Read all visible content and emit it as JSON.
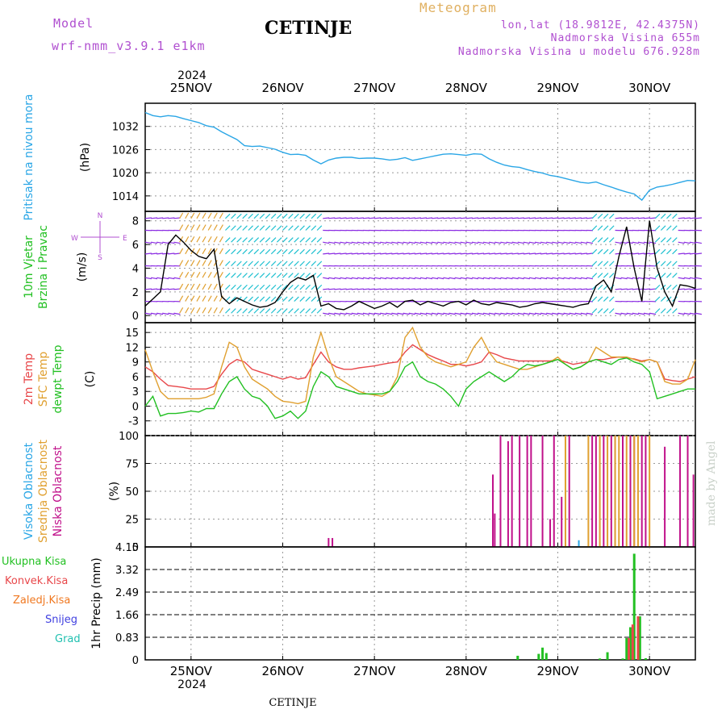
{
  "header": {
    "model_label": "Model",
    "model_name": "wrf-nmm_v3.9.1  e1km",
    "station": "CETINJE",
    "meteogram_label": "Meteogram",
    "lonlat": "lon,lat (18.9812E, 42.4375N)",
    "elevation": "Nadmorska Visina 655m",
    "model_elevation": "Nadmorska Visina u modelu 676.928m",
    "year_top": "2024",
    "year_bottom": "2024",
    "footer_station": "CETINJE",
    "credit": "made by Angel"
  },
  "colors": {
    "pressure": "#2aa6e6",
    "temp2m": "#e8474a",
    "sfc": "#e0a030",
    "dewpt": "#22c022",
    "high_cloud": "#2aa6e6",
    "mid_cloud": "#e0a030",
    "low_cloud": "#c0108a",
    "total_precip": "#22c022",
    "conv_precip": "#e8474a",
    "frozen": "#f07820",
    "snow": "#4040e0",
    "hail": "#20c0b0",
    "wind_purple": "#8a2be2"
  },
  "chart_data": [
    {
      "id": "pressure",
      "type": "line",
      "ylabel_lines": [
        "Pritisak na nivou mora",
        "(hPa)"
      ],
      "ylim": [
        1010,
        1038
      ],
      "yticks": [
        1014,
        1020,
        1026,
        1032
      ],
      "xlim": [
        0,
        144
      ],
      "x_tick_labels": [
        "25NOV",
        "26NOV",
        "27NOV",
        "28NOV",
        "29NOV",
        "30NOV"
      ],
      "x_tick_hours": [
        12,
        36,
        60,
        84,
        108,
        132
      ],
      "series": [
        {
          "key": "slp",
          "color_key": "pressure",
          "x": [
            0,
            2,
            4,
            6,
            8,
            10,
            12,
            14,
            16,
            18,
            20,
            22,
            24,
            26,
            28,
            30,
            32,
            34,
            36,
            38,
            40,
            42,
            44,
            46,
            48,
            50,
            52,
            54,
            56,
            58,
            60,
            62,
            64,
            66,
            68,
            70,
            72,
            74,
            76,
            78,
            80,
            82,
            84,
            86,
            88,
            90,
            92,
            94,
            96,
            98,
            100,
            102,
            104,
            106,
            108,
            110,
            112,
            114,
            116,
            118,
            120,
            122,
            124,
            126,
            128,
            130,
            132,
            134,
            136,
            138,
            140,
            142,
            144
          ],
          "y": [
            1035.6,
            1034.8,
            1034.5,
            1034.8,
            1034.6,
            1034.0,
            1033.5,
            1033.0,
            1032.2,
            1031.8,
            1030.6,
            1029.6,
            1028.6,
            1027.0,
            1026.8,
            1026.9,
            1026.5,
            1026.1,
            1025.3,
            1024.7,
            1024.8,
            1024.5,
            1023.3,
            1022.3,
            1023.3,
            1023.8,
            1024.0,
            1024.0,
            1023.7,
            1023.8,
            1023.8,
            1023.6,
            1023.3,
            1023.5,
            1023.9,
            1023.2,
            1023.6,
            1024.0,
            1024.4,
            1024.8,
            1024.9,
            1024.7,
            1024.5,
            1024.9,
            1024.8,
            1023.6,
            1022.7,
            1022.0,
            1021.6,
            1021.4,
            1020.8,
            1020.3,
            1019.9,
            1019.3,
            1019.0,
            1018.5,
            1018.0,
            1017.5,
            1017.3,
            1017.6,
            1016.9,
            1016.3,
            1015.6,
            1015.0,
            1014.5,
            1012.9,
            1015.5,
            1016.3,
            1016.6,
            1017.0,
            1017.5,
            1018.0,
            1017.9
          ]
        }
      ]
    },
    {
      "id": "wind",
      "type": "line",
      "ylabel_lines": [
        "10m Vjetar",
        "Brzina i Pravac",
        "(m/s)"
      ],
      "compass": {
        "n": "N",
        "s": "S",
        "e": "E",
        "w": "W"
      },
      "ylim": [
        -0.6,
        8.8
      ],
      "yticks": [
        0,
        2,
        4,
        6,
        8
      ],
      "xlim": [
        0,
        144
      ],
      "x_tick_hours": [
        12,
        36,
        60,
        84,
        108,
        132
      ],
      "series": [
        {
          "key": "speed",
          "color_key": "wind_dark",
          "x": [
            0,
            2,
            4,
            6,
            8,
            10,
            12,
            14,
            16,
            18,
            20,
            22,
            24,
            26,
            28,
            30,
            32,
            34,
            36,
            38,
            40,
            42,
            44,
            46,
            48,
            50,
            52,
            54,
            56,
            58,
            60,
            62,
            64,
            66,
            68,
            70,
            72,
            74,
            76,
            78,
            80,
            82,
            84,
            86,
            88,
            90,
            92,
            94,
            96,
            98,
            100,
            102,
            104,
            106,
            108,
            110,
            112,
            114,
            116,
            118,
            120,
            122,
            124,
            126,
            128,
            130,
            132,
            134,
            136,
            138,
            140,
            142,
            144
          ],
          "y": [
            0.8,
            1.4,
            2.0,
            6.0,
            6.8,
            6.2,
            5.5,
            5.0,
            4.8,
            5.6,
            1.6,
            1.0,
            1.5,
            1.2,
            0.9,
            0.7,
            0.8,
            1.1,
            2.0,
            2.8,
            3.2,
            3.0,
            3.4,
            0.8,
            1.0,
            0.6,
            0.5,
            0.8,
            1.2,
            0.9,
            0.6,
            0.8,
            1.1,
            0.7,
            1.2,
            1.3,
            0.9,
            1.2,
            1.0,
            0.8,
            1.1,
            1.2,
            0.9,
            1.3,
            1.0,
            0.9,
            1.1,
            1.0,
            0.9,
            0.7,
            0.8,
            1.0,
            1.1,
            1.0,
            0.9,
            0.8,
            0.7,
            0.9,
            1.0,
            2.5,
            3.0,
            2.0,
            5.0,
            7.5,
            4.0,
            1.2,
            8.0,
            4.0,
            2.0,
            0.8,
            2.6,
            2.5,
            2.3
          ]
        }
      ]
    },
    {
      "id": "temperature",
      "type": "line",
      "ylabel_lines": [
        "2m Temp",
        "SFC Temp",
        "dewpt Temp",
        "(C)"
      ],
      "ylim": [
        -6,
        17
      ],
      "yticks": [
        -3,
        0,
        3,
        6,
        9,
        12,
        15
      ],
      "xlim": [
        0,
        144
      ],
      "x_tick_hours": [
        12,
        36,
        60,
        84,
        108,
        132
      ],
      "series": [
        {
          "key": "t2m",
          "color_key": "temp2m",
          "x": [
            0,
            2,
            4,
            6,
            8,
            10,
            12,
            14,
            16,
            18,
            20,
            22,
            24,
            26,
            28,
            30,
            32,
            34,
            36,
            38,
            40,
            42,
            44,
            46,
            48,
            50,
            52,
            54,
            56,
            58,
            60,
            62,
            64,
            66,
            68,
            70,
            72,
            74,
            76,
            78,
            80,
            82,
            84,
            86,
            88,
            90,
            92,
            94,
            96,
            98,
            100,
            102,
            104,
            106,
            108,
            110,
            112,
            114,
            116,
            118,
            120,
            122,
            124,
            126,
            128,
            130,
            132,
            134,
            136,
            138,
            140,
            142,
            144
          ],
          "y": [
            8,
            7,
            5.5,
            4.2,
            4,
            3.8,
            3.5,
            3.5,
            3.5,
            4,
            6.5,
            8.5,
            9.5,
            9,
            7.5,
            7,
            6.5,
            6,
            5.5,
            6,
            5.5,
            5.8,
            8.5,
            11,
            9,
            8,
            7.5,
            7.5,
            7.8,
            8,
            8.2,
            8.5,
            8.8,
            9,
            11,
            12.5,
            11.5,
            10.5,
            9.8,
            9.2,
            8.5,
            8.5,
            8.2,
            8.5,
            9,
            11,
            10.5,
            9.8,
            9.5,
            9.2,
            9.2,
            9.2,
            9.2,
            9.2,
            9.5,
            9,
            8.5,
            8.8,
            9,
            9.5,
            9.5,
            9.8,
            10,
            9.8,
            9.6,
            9.2,
            9.5,
            9,
            5.5,
            5.2,
            5,
            5.5,
            6
          ]
        },
        {
          "key": "sfc",
          "color_key": "sfc",
          "x": [
            0,
            2,
            4,
            6,
            8,
            10,
            12,
            14,
            16,
            18,
            20,
            22,
            24,
            26,
            28,
            30,
            32,
            34,
            36,
            38,
            40,
            42,
            44,
            46,
            48,
            50,
            52,
            54,
            56,
            58,
            60,
            62,
            64,
            66,
            68,
            70,
            72,
            74,
            76,
            78,
            80,
            82,
            84,
            86,
            88,
            90,
            92,
            94,
            96,
            98,
            100,
            102,
            104,
            106,
            108,
            110,
            112,
            114,
            116,
            118,
            120,
            122,
            124,
            126,
            128,
            130,
            132,
            134,
            136,
            138,
            140,
            142,
            144
          ],
          "y": [
            11.5,
            7,
            3,
            1.5,
            1.5,
            1.5,
            1.5,
            1.5,
            1.8,
            2.5,
            8,
            13,
            12,
            8,
            5.5,
            4.5,
            3.5,
            2,
            1,
            0.8,
            0.5,
            1,
            10,
            15,
            10,
            6,
            5,
            4,
            3,
            2.5,
            2.3,
            2,
            3,
            6,
            14,
            16,
            12,
            10,
            9,
            8.5,
            8,
            8.5,
            9,
            12,
            14,
            11,
            9,
            8.5,
            8,
            7.5,
            7.5,
            8,
            8.5,
            9,
            10,
            8.5,
            7.5,
            8,
            9,
            12,
            11,
            10,
            10,
            10,
            9.5,
            9,
            9.5,
            9,
            5,
            4.5,
            4.5,
            5.5,
            9.5
          ]
        },
        {
          "key": "dewpt",
          "color_key": "dewpt",
          "x": [
            0,
            2,
            4,
            6,
            8,
            10,
            12,
            14,
            16,
            18,
            20,
            22,
            24,
            26,
            28,
            30,
            32,
            34,
            36,
            38,
            40,
            42,
            44,
            46,
            48,
            50,
            52,
            54,
            56,
            58,
            60,
            62,
            64,
            66,
            68,
            70,
            72,
            74,
            76,
            78,
            80,
            82,
            84,
            86,
            88,
            90,
            92,
            94,
            96,
            98,
            100,
            102,
            104,
            106,
            108,
            110,
            112,
            114,
            116,
            118,
            120,
            122,
            124,
            126,
            128,
            130,
            132,
            134,
            136,
            138,
            140,
            142,
            144
          ],
          "y": [
            0,
            2,
            -2,
            -1.5,
            -1.5,
            -1.3,
            -1,
            -1.2,
            -0.5,
            -0.5,
            2.5,
            5,
            6,
            3.5,
            2,
            1.5,
            0,
            -2.5,
            -2,
            -1,
            -2.5,
            -1,
            4,
            7,
            6,
            4,
            3.5,
            3,
            2.5,
            2.5,
            2.5,
            2.5,
            3,
            5,
            8,
            9,
            6,
            5,
            4.5,
            3.5,
            2,
            0,
            3.5,
            5,
            6,
            7,
            6,
            5,
            6,
            7.5,
            8.5,
            8.2,
            8.5,
            9,
            9.5,
            8.5,
            7.5,
            8,
            9,
            9.5,
            9,
            8.5,
            9.5,
            9.8,
            9,
            8.5,
            7,
            1.5,
            2,
            2.5,
            3,
            3.5,
            3.5
          ]
        }
      ]
    },
    {
      "id": "clouds",
      "type": "bar",
      "ylabel_lines": [
        "Visoka Oblacnost",
        "Srednja Oblacnost",
        "Niska Oblacnost",
        "(%)"
      ],
      "ylim": [
        0,
        100
      ],
      "yticks": [
        0,
        25,
        50,
        75,
        100
      ],
      "xlim": [
        0,
        144
      ],
      "x_tick_hours": [
        12,
        36,
        60,
        84,
        108,
        132
      ],
      "series": [
        {
          "key": "low",
          "color_key": "low_cloud",
          "x": [
            48,
            49,
            91,
            91.5,
            93,
            95,
            96,
            98,
            100,
            101,
            104,
            106,
            107,
            109,
            111,
            117,
            118,
            120,
            122,
            123,
            125,
            127,
            128,
            130,
            131,
            136,
            140,
            142,
            143.5
          ],
          "y": [
            8,
            8,
            65,
            30,
            100,
            95,
            100,
            100,
            100,
            100,
            100,
            25,
            100,
            45,
            100,
            100,
            100,
            100,
            100,
            100,
            100,
            100,
            100,
            100,
            100,
            90,
            100,
            100,
            65
          ]
        },
        {
          "key": "mid",
          "color_key": "mid_cloud",
          "x": [
            110,
            116,
            119,
            121,
            123,
            124,
            126,
            128,
            129,
            132
          ],
          "y": [
            100,
            100,
            100,
            100,
            100,
            100,
            100,
            100,
            100,
            100
          ]
        },
        {
          "key": "high",
          "color_key": "high_cloud",
          "x": [
            113.5
          ],
          "y": [
            6
          ]
        }
      ]
    },
    {
      "id": "precip",
      "type": "bar",
      "ylabel_lines": [
        "1hr Precip (mm)"
      ],
      "legend": [
        "Ukupna Kisa",
        "Konvek.Kisa",
        "Zaledj.Kisa",
        "Snijeg",
        "Grad"
      ],
      "ylim": [
        0,
        4.15
      ],
      "yticks": [
        0,
        0.83,
        1.66,
        2.49,
        3.32,
        4.15
      ],
      "xlim": [
        0,
        144
      ],
      "x_tick_hours": [
        12,
        36,
        60,
        84,
        108,
        132
      ],
      "series": [
        {
          "key": "total",
          "color_key": "total_precip",
          "x": [
            97.5,
            103,
            104,
            105,
            119,
            121,
            125,
            126,
            127,
            128,
            129.5,
            131
          ],
          "y": [
            0.15,
            0.22,
            0.45,
            0.25,
            0.05,
            0.28,
            0.05,
            0.8,
            1.2,
            3.9,
            1.6,
            0.06
          ]
        },
        {
          "key": "conv",
          "color_key": "conv_precip",
          "x": [
            126.6,
            127.6,
            129
          ],
          "y": [
            0.8,
            1.3,
            1.6
          ]
        }
      ]
    }
  ]
}
